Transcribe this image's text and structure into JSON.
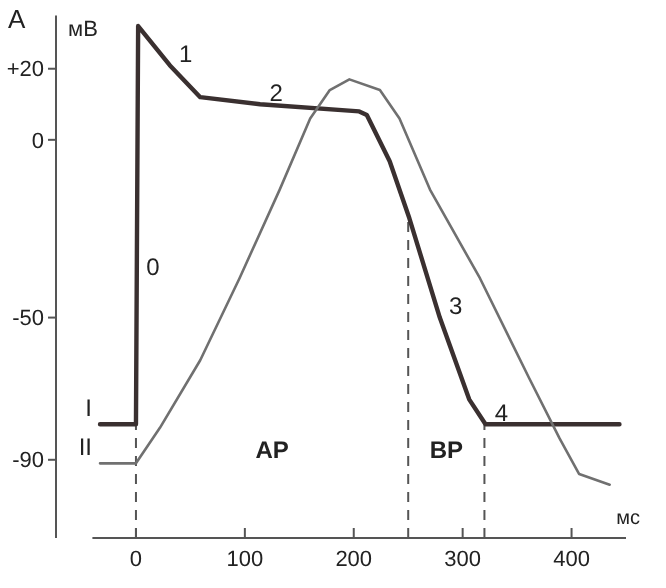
{
  "chart_data": {
    "type": "line",
    "xlabel": "мс",
    "ylabel": "мВ",
    "x": [
      -33,
      0,
      2,
      31,
      59,
      114,
      205,
      212,
      233,
      251,
      279,
      306,
      321,
      444
    ],
    "series": [
      {
        "name": "I",
        "color": "#3a3030",
        "values": [
          -80,
          -80,
          32,
          21,
          12,
          10,
          8,
          7,
          -6,
          -22,
          -50,
          -73,
          -80,
          -80
        ]
      },
      {
        "name": "II",
        "color": "#707070",
        "x": [
          -33,
          0,
          22,
          59,
          95,
          132,
          160,
          178,
          196,
          224,
          242,
          270,
          316,
          361,
          389,
          407,
          435
        ],
        "values": [
          -91,
          -91,
          -81,
          -62,
          -39,
          -14,
          6,
          14,
          17,
          14,
          6,
          -14,
          -39,
          -67,
          -84,
          -94,
          -97
        ]
      }
    ],
    "xlim": [
      -40,
      450
    ],
    "xticks": [
      0,
      100,
      200,
      300,
      400
    ],
    "ylim": [
      -112,
      35
    ],
    "yticks": [
      {
        "value": 20,
        "label": "+20"
      },
      0,
      -50,
      -90
    ],
    "grid": false,
    "marker": "none",
    "line_style": "solid",
    "ref_lines": [
      {
        "axis": "x",
        "value": 0,
        "line_style": "dashed"
      },
      {
        "axis": "x",
        "value": 250,
        "line_style": "dashed"
      },
      {
        "axis": "x",
        "value": 320,
        "line_style": "dashed"
      }
    ],
    "annotations": [
      "А",
      {
        "text": "0",
        "x": 1,
        "y": -39
      },
      {
        "text": "1",
        "x": 31,
        "y": 21
      },
      {
        "text": "2",
        "x": 114,
        "y": 10
      },
      {
        "text": "3",
        "x": 279,
        "y": -50
      },
      {
        "text": "4",
        "x": 321,
        "y": -80
      },
      "АР",
      "ВР"
    ]
  }
}
